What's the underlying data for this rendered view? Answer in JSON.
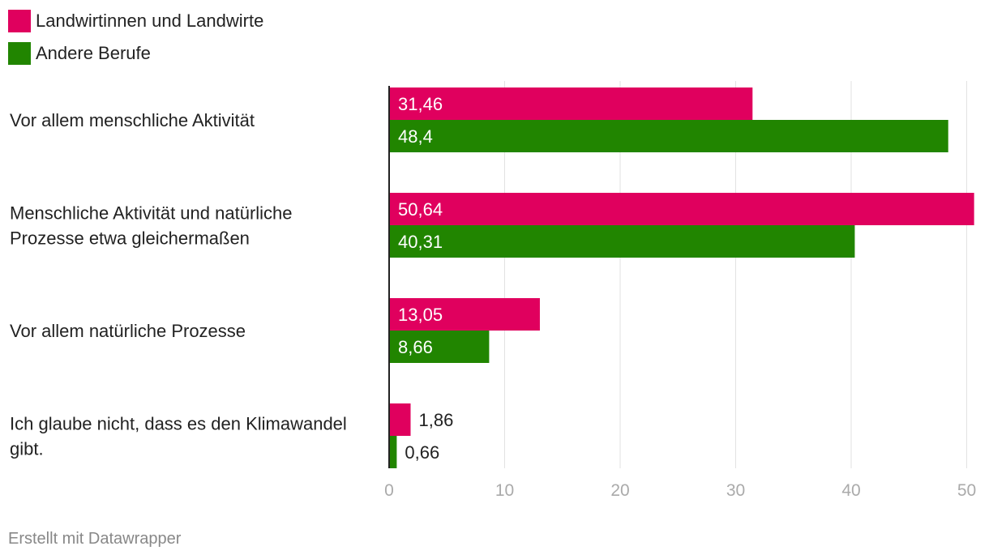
{
  "chart_data": {
    "type": "bar",
    "orientation": "horizontal",
    "title": "",
    "xlabel": "",
    "ylabel": "",
    "xlim": [
      0,
      50
    ],
    "xticks": [
      0,
      10,
      20,
      30,
      40,
      50
    ],
    "grid": true,
    "legend_position": "top-left",
    "categories": [
      [
        "Vor allem menschliche Aktivität"
      ],
      [
        "Menschliche Aktivität und natürliche",
        "Prozesse etwa gleichermaßen"
      ],
      [
        "Vor allem natürliche Prozesse"
      ],
      [
        "Ich glaube nicht, dass es den Klimawandel",
        "gibt."
      ]
    ],
    "series": [
      {
        "name": "Landwirtinnen und Landwirte",
        "color": "#e0005e",
        "values": [
          31.46,
          50.64,
          13.05,
          1.86
        ],
        "labels": [
          "31,46",
          "50,64",
          "13,05",
          "1,86"
        ]
      },
      {
        "name": "Andere Berufe",
        "color": "#218500",
        "values": [
          48.4,
          40.31,
          8.66,
          0.66
        ],
        "labels": [
          "48,4",
          "40,31",
          "8,66",
          "0,66"
        ]
      }
    ]
  },
  "legend": {
    "items": [
      {
        "label": "Landwirtinnen und Landwirte",
        "color": "#e0005e"
      },
      {
        "label": "Andere Berufe",
        "color": "#218500"
      }
    ]
  },
  "footer": {
    "credit": "Erstellt mit Datawrapper"
  }
}
